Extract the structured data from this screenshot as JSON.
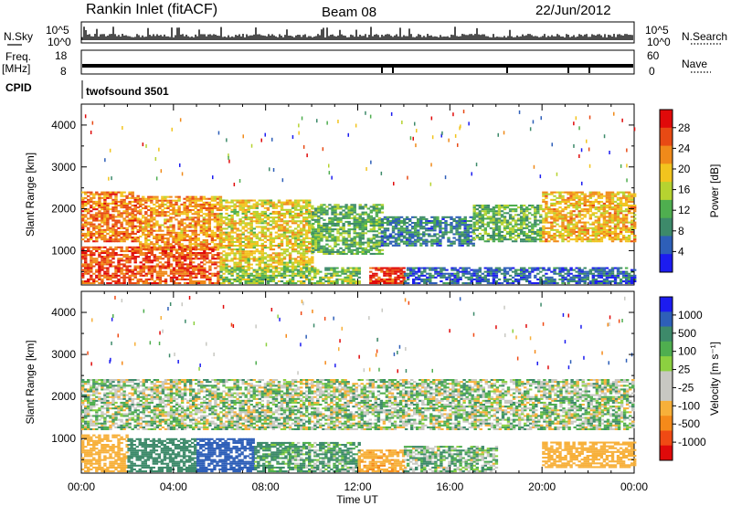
{
  "header": {
    "station": "Rankin Inlet (fitACF)",
    "beam": "Beam 08",
    "date": "22/Jun/2012"
  },
  "strips": {
    "nsky_label": "N.Sky",
    "nsearch_label": "N.Search",
    "freq_label_top": "Freq.",
    "freq_label_unit": "[MHz]",
    "nave_label": "Nave",
    "cpid_label": "CPID",
    "cpid_value": "twofsound 3501",
    "noise_ticks_left": [
      "10^5",
      "10^0"
    ],
    "noise_ticks_right": [
      "10^5",
      "10^0"
    ],
    "freq_ticks": [
      "18",
      "8"
    ],
    "nave_ticks": [
      "60",
      "0"
    ]
  },
  "colors": {
    "power_scale": [
      "#1c1cf0",
      "#2e5fb8",
      "#3d8a6a",
      "#4fae4f",
      "#b6d330",
      "#f2c41e",
      "#f08a1a",
      "#e84a14",
      "#e00a0a"
    ],
    "velocity_scale": [
      "#e00a0a",
      "#f04a14",
      "#f58a1a",
      "#f7b03a",
      "#c8c8c2",
      "#c8c8c2",
      "#8cd040",
      "#4fae4f",
      "#3d8a6a",
      "#2e5fb8",
      "#1c1cf0"
    ]
  },
  "chart_data": [
    {
      "type": "heatmap",
      "panel": "power",
      "ylabel": "Slant Range [km]",
      "xlabel": "",
      "ylim": [
        180,
        4500
      ],
      "xlim_hours": [
        0,
        24
      ],
      "yticks": [
        "1000",
        "2000",
        "3000",
        "4000"
      ],
      "xticks": [
        "00:00",
        "04:00",
        "08:00",
        "12:00",
        "16:00",
        "20:00",
        "00:00"
      ],
      "colorbar_label": "Power [dB]",
      "colorbar_ticks": [
        "4",
        "8",
        "12",
        "16",
        "20",
        "24",
        "28"
      ],
      "colorbar_range": [
        0,
        31.5
      ],
      "bands": [
        {
          "t0": 0,
          "t1": 2.5,
          "r0": 1200,
          "r1": 2400,
          "level": 24
        },
        {
          "t0": 2.5,
          "t1": 6,
          "r0": 1000,
          "r1": 2300,
          "level": 22
        },
        {
          "t0": 6,
          "t1": 10,
          "r0": 600,
          "r1": 2200,
          "level": 18
        },
        {
          "t0": 10,
          "t1": 13,
          "r0": 900,
          "r1": 2100,
          "level": 12
        },
        {
          "t0": 13,
          "t1": 17,
          "r0": 1100,
          "r1": 1800,
          "level": 8
        },
        {
          "t0": 17,
          "t1": 20,
          "r0": 1200,
          "r1": 2100,
          "level": 12
        },
        {
          "t0": 20,
          "t1": 24,
          "r0": 1200,
          "r1": 2400,
          "level": 20
        },
        {
          "t0": 0,
          "t1": 6,
          "r0": 200,
          "r1": 1100,
          "level": 26
        },
        {
          "t0": 6,
          "t1": 12,
          "r0": 200,
          "r1": 600,
          "level": 14
        },
        {
          "t0": 12.5,
          "t1": 14,
          "r0": 200,
          "r1": 600,
          "level": 28
        },
        {
          "t0": 14,
          "t1": 24,
          "r0": 200,
          "r1": 600,
          "level": 6
        }
      ]
    },
    {
      "type": "heatmap",
      "panel": "velocity",
      "ylabel": "Slant Range [km]",
      "xlabel": "Time UT",
      "ylim": [
        180,
        4500
      ],
      "xlim_hours": [
        0,
        24
      ],
      "yticks": [
        "1000",
        "2000",
        "3000",
        "4000"
      ],
      "xticks": [
        "00:00",
        "04:00",
        "08:00",
        "12:00",
        "16:00",
        "20:00",
        "00:00"
      ],
      "colorbar_label": "Velocity [m s⁻¹]",
      "colorbar_ticks": [
        "1000",
        "500",
        "100",
        "25",
        "-25",
        "-100",
        "-500",
        "-1000"
      ],
      "bands": [
        {
          "t0": 0,
          "t1": 24,
          "r0": 1200,
          "r1": 2400,
          "level": 0
        },
        {
          "t0": 0,
          "t1": 2,
          "r0": 200,
          "r1": 1100,
          "level": -300
        },
        {
          "t0": 2,
          "t1": 5,
          "r0": 200,
          "r1": 1000,
          "level": 300
        },
        {
          "t0": 5,
          "t1": 7.5,
          "r0": 200,
          "r1": 1000,
          "level": 700
        },
        {
          "t0": 7.5,
          "t1": 9,
          "r0": 200,
          "r1": 900,
          "level": 150
        },
        {
          "t0": 9,
          "t1": 12,
          "r0": 200,
          "r1": 900,
          "level": 100
        },
        {
          "t0": 12,
          "t1": 14,
          "r0": 200,
          "r1": 700,
          "level": -400
        },
        {
          "t0": 14,
          "t1": 18,
          "r0": 200,
          "r1": 800,
          "level": 40
        },
        {
          "t0": 20,
          "t1": 24,
          "r0": 300,
          "r1": 900,
          "level": -300
        }
      ]
    }
  ]
}
